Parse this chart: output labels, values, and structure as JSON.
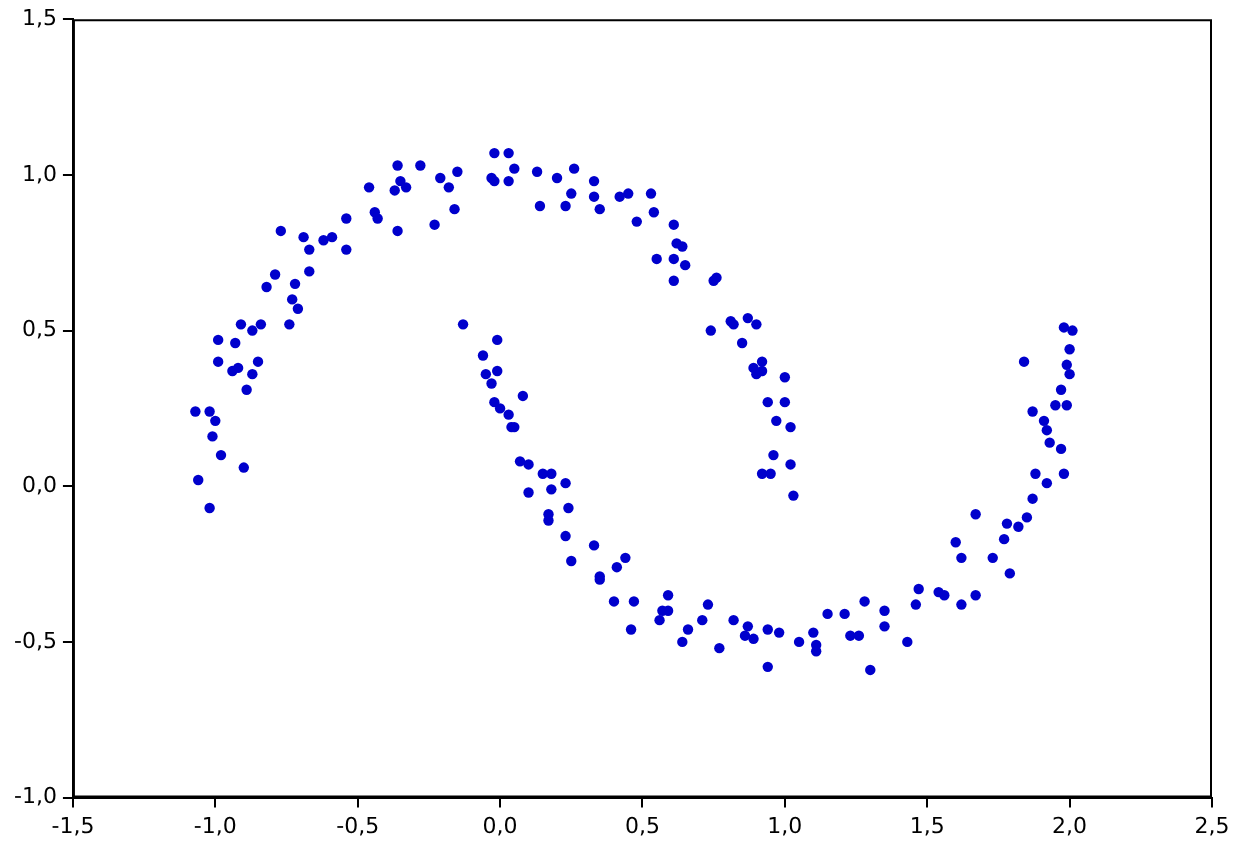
{
  "chart_data": {
    "type": "scatter",
    "grid": false,
    "legend": false,
    "marker": "circle",
    "xlim": [
      -1.5,
      2.5
    ],
    "ylim": [
      -1.0,
      1.5
    ],
    "xticks": [
      {
        "value": -1.5,
        "label": "-1,5"
      },
      {
        "value": -1.0,
        "label": "-1,0"
      },
      {
        "value": -0.5,
        "label": "-0,5"
      },
      {
        "value": 0,
        "label": "0,0"
      },
      {
        "value": 0.5,
        "label": "0,5"
      },
      {
        "value": 1.0,
        "label": "1,0"
      },
      {
        "value": 1.5,
        "label": "1,5"
      },
      {
        "value": 2.0,
        "label": "2,0"
      },
      {
        "value": 2.5,
        "label": "2,5"
      }
    ],
    "yticks": [
      {
        "value": -1.0,
        "label": "-1,0"
      },
      {
        "value": -0.5,
        "label": "-0,5"
      },
      {
        "value": 0,
        "label": "0,0"
      },
      {
        "value": 0.5,
        "label": "0,5"
      },
      {
        "value": 1.0,
        "label": "1,0"
      },
      {
        "value": 1.5,
        "label": "1,5"
      }
    ],
    "series": [
      {
        "color": "#0000cc",
        "x": [
          -1.07,
          -1.02,
          -1.0,
          -1.01,
          -0.98,
          -0.9,
          -1.06,
          -1.02,
          -0.99,
          -0.93,
          -0.99,
          -0.94,
          -0.92,
          -0.87,
          -0.85,
          -0.89,
          -0.91,
          -0.87,
          -0.84,
          -0.82,
          -0.79,
          -0.74,
          -0.71,
          -0.73,
          -0.72,
          -0.67,
          -0.77,
          -0.69,
          -0.67,
          -0.62,
          -0.59,
          -0.54,
          -0.54,
          -0.46,
          -0.44,
          -0.43,
          -0.36,
          -0.37,
          -0.35,
          -0.33,
          -0.36,
          -0.28,
          -0.23,
          -0.21,
          -0.18,
          -0.15,
          -0.16,
          -0.02,
          0.03,
          -0.03,
          -0.02,
          0.05,
          0.03,
          0.13,
          0.14,
          0.2,
          0.26,
          0.25,
          0.23,
          0.33,
          0.33,
          0.35,
          0.42,
          0.45,
          0.48,
          0.53,
          0.54,
          0.55,
          0.61,
          0.62,
          0.64,
          0.61,
          0.65,
          0.61,
          0.76,
          0.75,
          0.74,
          0.81,
          0.82,
          0.87,
          0.9,
          0.85,
          0.92,
          0.89,
          0.92,
          0.9,
          1.0,
          0.94,
          1.0,
          0.97,
          1.02,
          0.96,
          0.92,
          0.95,
          1.02,
          1.03,
          -0.13,
          -0.01,
          -0.06,
          -0.01,
          -0.05,
          -0.03,
          0.08,
          -0.02,
          0.0,
          0.03,
          0.04,
          0.05,
          0.07,
          0.1,
          0.15,
          0.18,
          0.23,
          0.1,
          0.18,
          0.17,
          0.24,
          0.17,
          0.23,
          0.33,
          0.25,
          0.44,
          0.41,
          0.35,
          0.35,
          0.4,
          0.47,
          0.59,
          0.59,
          0.57,
          0.56,
          0.46,
          0.66,
          0.64,
          0.73,
          0.71,
          0.77,
          0.82,
          0.87,
          0.86,
          0.89,
          0.94,
          0.98,
          0.94,
          1.05,
          1.1,
          1.11,
          1.11,
          1.15,
          1.21,
          1.23,
          1.26,
          1.28,
          1.3,
          1.35,
          1.35,
          1.43,
          1.47,
          1.46,
          1.54,
          1.56,
          1.62,
          1.67,
          1.62,
          1.6,
          1.67,
          1.73,
          1.79,
          1.77,
          1.78,
          1.82,
          1.85,
          1.87,
          1.92,
          1.88,
          1.98,
          1.97,
          1.93,
          1.92,
          1.91,
          1.87,
          1.95,
          1.99,
          1.97,
          2.0,
          1.99,
          2.0,
          1.84,
          1.98,
          2.01
        ],
        "values": [
          0.24,
          0.24,
          0.21,
          0.16,
          0.1,
          0.06,
          0.02,
          -0.07,
          0.47,
          0.46,
          0.4,
          0.37,
          0.38,
          0.36,
          0.4,
          0.31,
          0.52,
          0.5,
          0.52,
          0.64,
          0.68,
          0.52,
          0.57,
          0.6,
          0.65,
          0.69,
          0.82,
          0.8,
          0.76,
          0.79,
          0.8,
          0.76,
          0.86,
          0.96,
          0.88,
          0.86,
          0.82,
          0.95,
          0.98,
          0.96,
          1.03,
          1.03,
          0.84,
          0.99,
          0.96,
          1.01,
          0.89,
          1.07,
          1.07,
          0.99,
          0.98,
          1.02,
          0.98,
          1.01,
          0.9,
          0.99,
          1.02,
          0.94,
          0.9,
          0.98,
          0.93,
          0.89,
          0.93,
          0.94,
          0.85,
          0.94,
          0.88,
          0.73,
          0.84,
          0.78,
          0.77,
          0.73,
          0.71,
          0.66,
          0.67,
          0.66,
          0.5,
          0.53,
          0.52,
          0.54,
          0.52,
          0.46,
          0.4,
          0.38,
          0.37,
          0.36,
          0.35,
          0.27,
          0.27,
          0.21,
          0.19,
          0.1,
          0.04,
          0.04,
          0.07,
          -0.03,
          0.52,
          0.47,
          0.42,
          0.37,
          0.36,
          0.33,
          0.29,
          0.27,
          0.25,
          0.23,
          0.19,
          0.19,
          0.08,
          0.07,
          0.04,
          0.04,
          0.01,
          -0.02,
          -0.01,
          -0.09,
          -0.07,
          -0.11,
          -0.16,
          -0.19,
          -0.24,
          -0.23,
          -0.26,
          -0.29,
          -0.3,
          -0.37,
          -0.37,
          -0.35,
          -0.4,
          -0.4,
          -0.43,
          -0.46,
          -0.46,
          -0.5,
          -0.38,
          -0.43,
          -0.52,
          -0.43,
          -0.45,
          -0.48,
          -0.49,
          -0.46,
          -0.47,
          -0.58,
          -0.5,
          -0.47,
          -0.51,
          -0.53,
          -0.41,
          -0.41,
          -0.48,
          -0.48,
          -0.37,
          -0.59,
          -0.4,
          -0.45,
          -0.5,
          -0.33,
          -0.38,
          -0.34,
          -0.35,
          -0.38,
          -0.35,
          -0.23,
          -0.18,
          -0.09,
          -0.23,
          -0.28,
          -0.17,
          -0.12,
          -0.13,
          -0.1,
          -0.04,
          0.01,
          0.04,
          0.04,
          0.12,
          0.14,
          0.18,
          0.21,
          0.24,
          0.26,
          0.26,
          0.31,
          0.36,
          0.39,
          0.44,
          0.4,
          0.51,
          0.5
        ]
      }
    ]
  }
}
